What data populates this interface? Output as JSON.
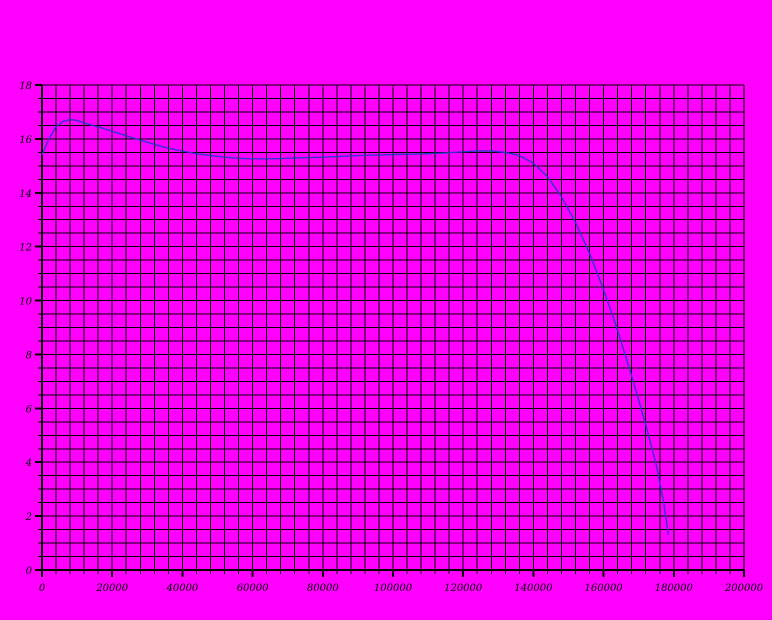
{
  "page": {
    "background_color": "#ff00ff"
  },
  "chart_data": {
    "type": "line",
    "title": "",
    "xlabel": "",
    "ylabel": "",
    "xlim": [
      0,
      200000
    ],
    "ylim": [
      0,
      18
    ],
    "x_minor_step": 4000,
    "y_minor_step": 0.5,
    "x_major_ticks": [
      0,
      20000,
      40000,
      60000,
      80000,
      100000,
      120000,
      140000,
      160000,
      180000,
      200000
    ],
    "x_tick_labels": [
      "0",
      "20000",
      "40000",
      "60000",
      "80000",
      "100000",
      "120000",
      "140000",
      "160000",
      "180000",
      "200000"
    ],
    "y_major_ticks": [
      0,
      2,
      4,
      6,
      8,
      10,
      12,
      14,
      16,
      18
    ],
    "y_tick_labels": [
      "0",
      "2",
      "4",
      "6",
      "8",
      "10",
      "12",
      "14",
      "16",
      "18"
    ],
    "grid": true,
    "legend": "none",
    "background_color": "#ff00ff",
    "grid_color": "#000000",
    "axis_color": "#000000",
    "line_color": "#3333cc",
    "series": [
      {
        "name": "curve",
        "points": [
          [
            0,
            15.4
          ],
          [
            2000,
            16.0
          ],
          [
            4000,
            16.45
          ],
          [
            6000,
            16.65
          ],
          [
            8000,
            16.72
          ],
          [
            10000,
            16.68
          ],
          [
            13000,
            16.55
          ],
          [
            16000,
            16.45
          ],
          [
            20000,
            16.28
          ],
          [
            24000,
            16.12
          ],
          [
            28000,
            15.95
          ],
          [
            32000,
            15.8
          ],
          [
            36000,
            15.65
          ],
          [
            40000,
            15.55
          ],
          [
            44000,
            15.45
          ],
          [
            48000,
            15.38
          ],
          [
            52000,
            15.32
          ],
          [
            56000,
            15.28
          ],
          [
            60000,
            15.26
          ],
          [
            65000,
            15.26
          ],
          [
            70000,
            15.28
          ],
          [
            75000,
            15.3
          ],
          [
            80000,
            15.32
          ],
          [
            85000,
            15.35
          ],
          [
            90000,
            15.38
          ],
          [
            95000,
            15.4
          ],
          [
            100000,
            15.42
          ],
          [
            105000,
            15.43
          ],
          [
            110000,
            15.45
          ],
          [
            115000,
            15.48
          ],
          [
            120000,
            15.52
          ],
          [
            124000,
            15.55
          ],
          [
            128000,
            15.55
          ],
          [
            132000,
            15.5
          ],
          [
            136000,
            15.38
          ],
          [
            140000,
            15.1
          ],
          [
            144000,
            14.6
          ],
          [
            148000,
            13.85
          ],
          [
            152000,
            12.9
          ],
          [
            156000,
            11.75
          ],
          [
            160000,
            10.4
          ],
          [
            164000,
            8.9
          ],
          [
            168000,
            7.2
          ],
          [
            172000,
            5.4
          ],
          [
            175000,
            3.9
          ],
          [
            177000,
            2.6
          ],
          [
            178500,
            1.3
          ]
        ]
      }
    ]
  }
}
